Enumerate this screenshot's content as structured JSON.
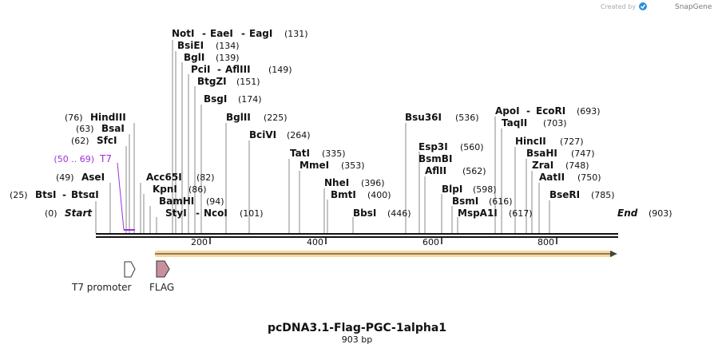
{
  "header": {
    "credit": "Created by",
    "brand": "SnapGene"
  },
  "map": {
    "title": "pcDNA3.1-Flag-PGC-1alpha1",
    "length_label": "903 bp",
    "total_bp": 903,
    "start_label": "Start",
    "end_label": "End",
    "start_pos": "(0)",
    "end_pos": "(903)",
    "ticks": [
      200,
      400,
      600,
      800
    ]
  },
  "sites": [
    {
      "name": "NotI",
      "extra": [
        "EaeI",
        "EagI"
      ],
      "pos": "(131)",
      "bp": 131,
      "side": "right"
    },
    {
      "name": "BsiEI",
      "extra": [],
      "pos": "(134)",
      "bp": 134,
      "side": "right"
    },
    {
      "name": "BglI",
      "extra": [],
      "pos": "(139)",
      "bp": 139,
      "side": "right"
    },
    {
      "name": "PciI",
      "extra": [
        "AflIII"
      ],
      "pos": "(149)",
      "bp": 149,
      "side": "right"
    },
    {
      "name": "BtgZI",
      "extra": [],
      "pos": "(151)",
      "bp": 151,
      "side": "right"
    },
    {
      "name": "BsgI",
      "extra": [],
      "pos": "(174)",
      "bp": 174,
      "side": "right"
    },
    {
      "name": "HindIII",
      "extra": [],
      "pos": "(76)",
      "bp": 76,
      "side": "left"
    },
    {
      "name": "BsaI",
      "extra": [],
      "pos": "(63)",
      "bp": 63,
      "side": "left"
    },
    {
      "name": "SfcI",
      "extra": [],
      "pos": "(62)",
      "bp": 62,
      "side": "left"
    },
    {
      "name": "AseI",
      "extra": [],
      "pos": "(49)",
      "bp": 49,
      "side": "left"
    },
    {
      "name": "BtsI",
      "extra": [
        "BtsαI"
      ],
      "pos": "(25)",
      "bp": 25,
      "side": "left"
    },
    {
      "name": "Acc65I",
      "extra": [],
      "pos": "(82)",
      "bp": 82,
      "side": "right"
    },
    {
      "name": "KpnI",
      "extra": [],
      "pos": "(86)",
      "bp": 86,
      "side": "right"
    },
    {
      "name": "BamHI",
      "extra": [],
      "pos": "(94)",
      "bp": 94,
      "side": "right"
    },
    {
      "name": "StyI",
      "extra": [
        "NcoI"
      ],
      "pos": "(101)",
      "bp": 101,
      "side": "right"
    },
    {
      "name": "BglII",
      "extra": [],
      "pos": "(225)",
      "bp": 225,
      "side": "right"
    },
    {
      "name": "BciVI",
      "extra": [],
      "pos": "(264)",
      "bp": 264,
      "side": "right"
    },
    {
      "name": "TatI",
      "extra": [],
      "pos": "(335)",
      "bp": 335,
      "side": "right"
    },
    {
      "name": "MmeI",
      "extra": [],
      "pos": "(353)",
      "bp": 353,
      "side": "right"
    },
    {
      "name": "NheI",
      "extra": [],
      "pos": "(396)",
      "bp": 396,
      "side": "right"
    },
    {
      "name": "BmtI",
      "extra": [],
      "pos": "(400)",
      "bp": 400,
      "side": "right"
    },
    {
      "name": "BbsI",
      "extra": [],
      "pos": "(446)",
      "bp": 446,
      "side": "right"
    },
    {
      "name": "Bsu36I",
      "extra": [],
      "pos": "(536)",
      "bp": 536,
      "side": "right"
    },
    {
      "name": "Esp3I",
      "extra": [],
      "pos": "(560)",
      "bp": 560,
      "side": "right"
    },
    {
      "name": "BsmBI",
      "extra": [],
      "pos": "",
      "bp": 560,
      "side": "right"
    },
    {
      "name": "AflII",
      "extra": [],
      "pos": "(562)",
      "bp": 562,
      "side": "right"
    },
    {
      "name": "BlpI",
      "extra": [],
      "pos": "(598)",
      "bp": 598,
      "side": "right"
    },
    {
      "name": "BsmI",
      "extra": [],
      "pos": "(616)",
      "bp": 616,
      "side": "right"
    },
    {
      "name": "MspA1I",
      "extra": [],
      "pos": "(617)",
      "bp": 617,
      "side": "right"
    },
    {
      "name": "ApoI",
      "extra": [
        "EcoRI"
      ],
      "pos": "(693)",
      "bp": 693,
      "side": "right"
    },
    {
      "name": "TaqII",
      "extra": [],
      "pos": "(703)",
      "bp": 703,
      "side": "right"
    },
    {
      "name": "HincII",
      "extra": [],
      "pos": "(727)",
      "bp": 727,
      "side": "right"
    },
    {
      "name": "BsaHI",
      "extra": [],
      "pos": "(747)",
      "bp": 747,
      "side": "right"
    },
    {
      "name": "ZraI",
      "extra": [],
      "pos": "(748)",
      "bp": 748,
      "side": "right"
    },
    {
      "name": "AatII",
      "extra": [],
      "pos": "(750)",
      "bp": 750,
      "side": "right"
    },
    {
      "name": "BseRI",
      "extra": [],
      "pos": "(785)",
      "bp": 785,
      "side": "right"
    }
  ],
  "primer": {
    "name": "T7",
    "range": "(50 .. 69)",
    "color": "#9b30d9"
  },
  "features": [
    {
      "name": "T7 promoter",
      "color": "#ffffff"
    },
    {
      "name": "FLAG",
      "color": "#c8909f"
    }
  ],
  "orf": {
    "color": "#f3b94a",
    "stroke": "#444444"
  },
  "colors": {
    "line": "#888888",
    "text": "#111111",
    "credit": "#aaaaaa",
    "brand": "#2b8fd6"
  }
}
